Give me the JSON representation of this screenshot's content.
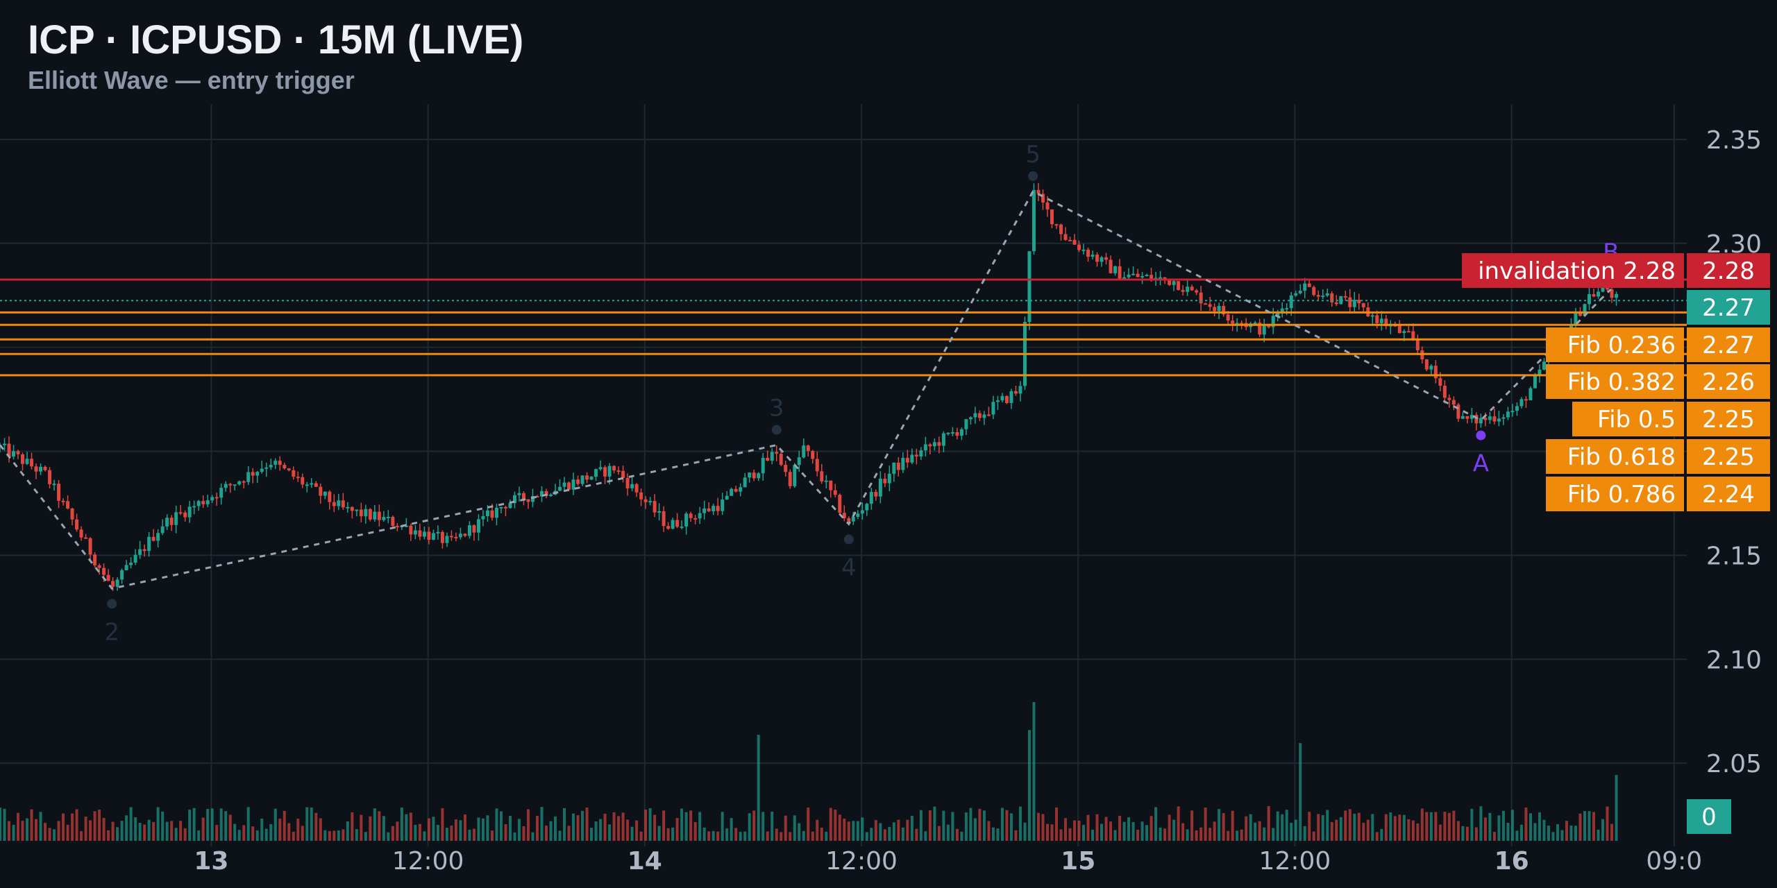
{
  "header": {
    "title": "ICP · ICPUSD · 15M (LIVE)",
    "subtitle": "Elliott Wave — entry trigger"
  },
  "colors": {
    "background": "#0d1118",
    "grid": "#1c2b31",
    "up": "#1fa391",
    "down": "#e0473f",
    "fib": "#f08a0a",
    "invalidation": "#c92331",
    "last_price": "#23a394",
    "wave_label": "#243140",
    "abc_label": "#7b3ef0",
    "axis_text": "#b0b8c6"
  },
  "chart_data": {
    "type": "candlestick",
    "title": "ICP · ICPUSD · 15M (LIVE)",
    "subtitle": "Elliott Wave — entry trigger",
    "x_tick_labels": [
      "13",
      "12:00",
      "14",
      "12:00",
      "15",
      "12:00",
      "16",
      "09:0"
    ],
    "x_ticks_bold": [
      true,
      false,
      true,
      false,
      true,
      false,
      true,
      false
    ],
    "x_ticks_hours": [
      11.7,
      23.7,
      35.7,
      47.7,
      59.7,
      71.7,
      83.7,
      92.7
    ],
    "x_range_hours": [
      0,
      93.4
    ],
    "y_ticks": [
      2.05,
      2.1,
      2.15,
      2.2,
      2.25,
      2.3,
      2.35
    ],
    "y_tick_labels": [
      "2.05",
      "2.10",
      "2.15",
      "2.20",
      "2.25",
      "2.30",
      "2.35"
    ],
    "ylim": [
      2.01,
      2.367
    ],
    "grid": true,
    "price_path": [
      {
        "t": 0,
        "p": 2.202
      },
      {
        "t": 2.5,
        "p": 2.189
      },
      {
        "t": 6.2,
        "p": 2.134
      },
      {
        "t": 9,
        "p": 2.165
      },
      {
        "t": 15,
        "p": 2.195
      },
      {
        "t": 19,
        "p": 2.172
      },
      {
        "t": 21,
        "p": 2.168
      },
      {
        "t": 25,
        "p": 2.156
      },
      {
        "t": 28,
        "p": 2.175
      },
      {
        "t": 31,
        "p": 2.183
      },
      {
        "t": 34,
        "p": 2.192
      },
      {
        "t": 37,
        "p": 2.164
      },
      {
        "t": 40,
        "p": 2.175
      },
      {
        "t": 42,
        "p": 2.192
      },
      {
        "t": 43,
        "p": 2.2
      },
      {
        "t": 43.7,
        "p": 2.185
      },
      {
        "t": 44.5,
        "p": 2.202
      },
      {
        "t": 47,
        "p": 2.165
      },
      {
        "t": 49.5,
        "p": 2.192
      },
      {
        "t": 53,
        "p": 2.21
      },
      {
        "t": 56.5,
        "p": 2.23
      },
      {
        "t": 57.2,
        "p": 2.325
      },
      {
        "t": 59,
        "p": 2.303
      },
      {
        "t": 62,
        "p": 2.285
      },
      {
        "t": 65,
        "p": 2.282
      },
      {
        "t": 68,
        "p": 2.265
      },
      {
        "t": 70,
        "p": 2.258
      },
      {
        "t": 72,
        "p": 2.28
      },
      {
        "t": 75,
        "p": 2.27
      },
      {
        "t": 78,
        "p": 2.255
      },
      {
        "t": 81,
        "p": 2.215
      },
      {
        "t": 82,
        "p": 2.215
      },
      {
        "t": 84,
        "p": 2.22
      },
      {
        "t": 88,
        "p": 2.275
      },
      {
        "t": 89,
        "p": 2.278
      },
      {
        "t": 89.6,
        "p": 2.272
      }
    ],
    "volume_spikes_hours": [
      57.1,
      57.3,
      72.0,
      42.0,
      89.5
    ],
    "elliott_wave": {
      "points": [
        {
          "label": "",
          "t": 0,
          "p": 2.203
        },
        {
          "label": "2",
          "t": 6.2,
          "p": 2.134
        },
        {
          "label": "3",
          "t": 43.0,
          "p": 2.203
        },
        {
          "label": "4",
          "t": 47.0,
          "p": 2.165
        },
        {
          "label": "5",
          "t": 57.2,
          "p": 2.325
        },
        {
          "label": "A",
          "t": 82.0,
          "p": 2.215
        },
        {
          "label": "B",
          "t": 89.2,
          "p": 2.278
        }
      ]
    },
    "horizontal_levels": [
      {
        "name": "invalidation",
        "label": "invalidation 2.28",
        "value": 2.2826,
        "axis_label": "2.28",
        "color": "#c92331"
      },
      {
        "name": "fib-0.236",
        "label": "Fib 0.236",
        "value": 2.2668,
        "axis_label": "2.27",
        "color": "#f08a0a"
      },
      {
        "name": "fib-0.382",
        "label": "Fib 0.382",
        "value": 2.2608,
        "axis_label": "2.26",
        "color": "#f08a0a"
      },
      {
        "name": "fib-0.5",
        "label": "Fib 0.5",
        "value": 2.2538,
        "axis_label": "2.25",
        "color": "#f08a0a"
      },
      {
        "name": "fib-0.618",
        "label": "Fib 0.618",
        "value": 2.2468,
        "axis_label": "2.25",
        "color": "#f08a0a"
      },
      {
        "name": "fib-0.786",
        "label": "Fib 0.786",
        "value": 2.2366,
        "axis_label": "2.24",
        "color": "#f08a0a"
      }
    ],
    "last_price": {
      "value": 2.2725,
      "axis_label": "2.27"
    },
    "volume_badge": "0"
  }
}
